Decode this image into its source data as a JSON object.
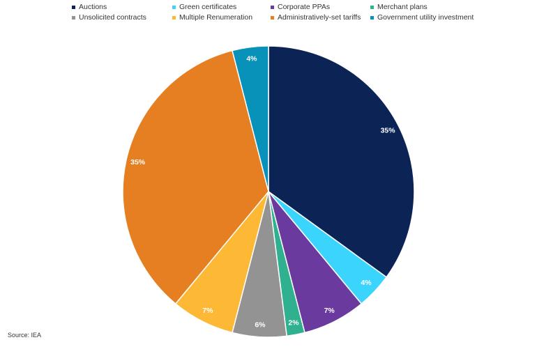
{
  "chart_data": {
    "type": "pie",
    "title": "",
    "series": [
      {
        "name": "Auctions",
        "value": 35,
        "label": "35%",
        "color": "#0c2356"
      },
      {
        "name": "Green certificates",
        "value": 4,
        "label": "4%",
        "color": "#3bd4fc"
      },
      {
        "name": "Corporate PPAs",
        "value": 7,
        "label": "7%",
        "color": "#6a3a9e"
      },
      {
        "name": "Merchant plans",
        "value": 2,
        "label": "2%",
        "color": "#2fb08e"
      },
      {
        "name": "Unsolicited contracts",
        "value": 6,
        "label": "6%",
        "color": "#939393"
      },
      {
        "name": "Multiple Renumeration",
        "value": 7,
        "label": "7%",
        "color": "#fdb835"
      },
      {
        "name": "Administratively-set tariffs",
        "value": 35,
        "label": "35%",
        "color": "#e67f22"
      },
      {
        "name": "Government utility investment",
        "value": 4,
        "label": "4%",
        "color": "#0891b9"
      }
    ],
    "legend_position": "top"
  },
  "source": "Source: IEA"
}
